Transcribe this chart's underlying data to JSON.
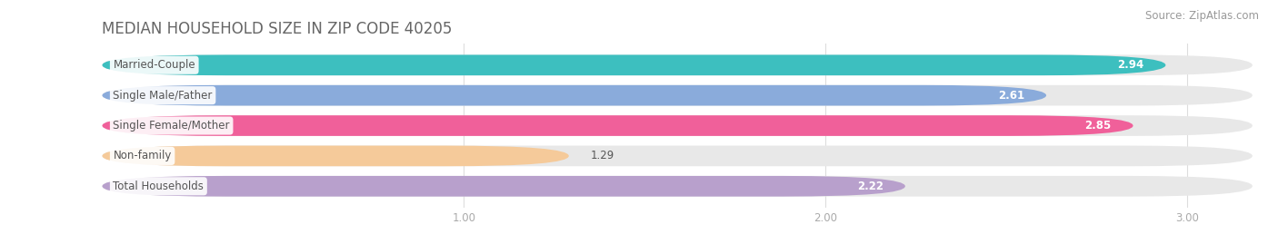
{
  "title": "MEDIAN HOUSEHOLD SIZE IN ZIP CODE 40205",
  "source": "Source: ZipAtlas.com",
  "categories": [
    "Married-Couple",
    "Single Male/Father",
    "Single Female/Mother",
    "Non-family",
    "Total Households"
  ],
  "values": [
    2.94,
    2.61,
    2.85,
    1.29,
    2.22
  ],
  "bar_colors": [
    "#3dbfbf",
    "#8aabdb",
    "#f0609a",
    "#f5ca9a",
    "#b8a0cc"
  ],
  "xlim_data": [
    0,
    3.18
  ],
  "xstart": 0.0,
  "xticks": [
    1.0,
    2.0,
    3.0
  ],
  "background_color": "#ffffff",
  "bar_bg_color": "#e8e8e8",
  "title_fontsize": 12,
  "source_fontsize": 8.5,
  "label_fontsize": 8.5,
  "value_fontsize": 8.5,
  "bar_height": 0.68,
  "label_color": "#555555",
  "value_color": "#ffffff",
  "tick_color": "#aaaaaa",
  "title_color": "#666666"
}
